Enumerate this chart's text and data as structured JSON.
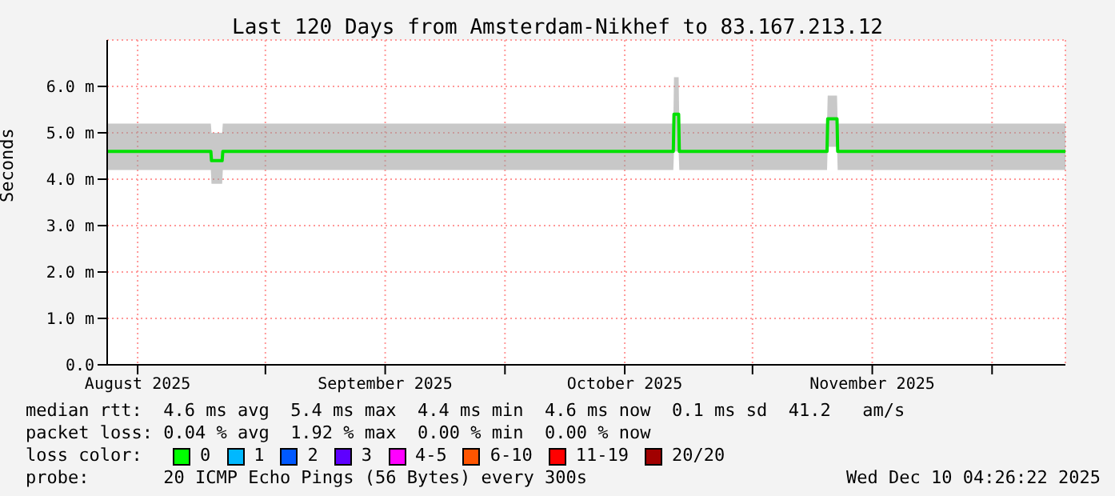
{
  "chart_data": {
    "type": "line",
    "title": "Last 120 Days from Amsterdam-Nikhef to 83.167.213.12",
    "ylabel": "Seconds",
    "x": [
      "2025-08-12T04:26",
      "2025-08-25T04:00",
      "2025-08-25T06:00",
      "2025-08-26T14:00",
      "2025-08-26T16:00",
      "2025-10-22T02:00",
      "2025-10-22T04:00",
      "2025-10-22T18:00",
      "2025-10-22T20:00",
      "2025-11-10T08:00",
      "2025-11-10T10:00",
      "2025-11-11T14:00",
      "2025-11-11T16:00",
      "2025-12-10T04:26"
    ],
    "series": [
      {
        "color": "#00e000",
        "values": [
          4.6,
          4.6,
          4.4,
          4.4,
          4.6,
          4.6,
          5.4,
          5.4,
          4.6,
          4.6,
          5.3,
          5.3,
          4.6,
          4.6
        ],
        "lower": [
          4.2,
          4.2,
          3.9,
          3.9,
          4.2,
          4.2,
          4.6,
          4.6,
          4.2,
          4.2,
          4.7,
          4.7,
          4.2,
          4.2
        ],
        "upper": [
          5.2,
          5.2,
          5.0,
          5.0,
          5.2,
          5.2,
          6.2,
          6.2,
          5.2,
          5.2,
          5.8,
          5.8,
          5.2,
          5.2
        ]
      }
    ],
    "xlim": [
      "2025-08-12T04:26",
      "2025-12-10T04:26"
    ],
    "xticks": [
      {
        "value": "2025-08-16",
        "label": "August 2025"
      },
      {
        "value": "2025-09-01",
        "label": null
      },
      {
        "value": "2025-09-16",
        "label": "September 2025"
      },
      {
        "value": "2025-10-01",
        "label": null
      },
      {
        "value": "2025-10-16",
        "label": "October 2025"
      },
      {
        "value": "2025-11-01",
        "label": null
      },
      {
        "value": "2025-11-16",
        "label": "November 2025"
      },
      {
        "value": "2025-12-01",
        "label": null
      }
    ],
    "ylim": [
      0,
      7
    ],
    "yticks": [
      {
        "value": 0,
        "label": "0.0"
      },
      {
        "value": 1,
        "label": "1.0 m"
      },
      {
        "value": 2,
        "label": "2.0 m"
      },
      {
        "value": 3,
        "label": "3.0 m"
      },
      {
        "value": 4,
        "label": "4.0 m"
      },
      {
        "value": 5,
        "label": "5.0 m"
      },
      {
        "value": 6,
        "label": "6.0 m"
      }
    ],
    "grid": true,
    "annotations": [
      "median rtt:  4.6 ms avg  5.4 ms max  4.4 ms min  4.6 ms now  0.1 ms sd  41.2   am/s",
      "packet loss: 0.04 % avg  1.92 % max  0.00 % min  0.00 % now",
      "loss color:",
      "0",
      "1",
      "2",
      "3",
      "4-5",
      "6-10",
      "11-19",
      "20/20",
      "probe:       20 ICMP Echo Pings (56 Bytes) every 300s",
      "Wed Dec 10 04:26:22 2025"
    ]
  }
}
